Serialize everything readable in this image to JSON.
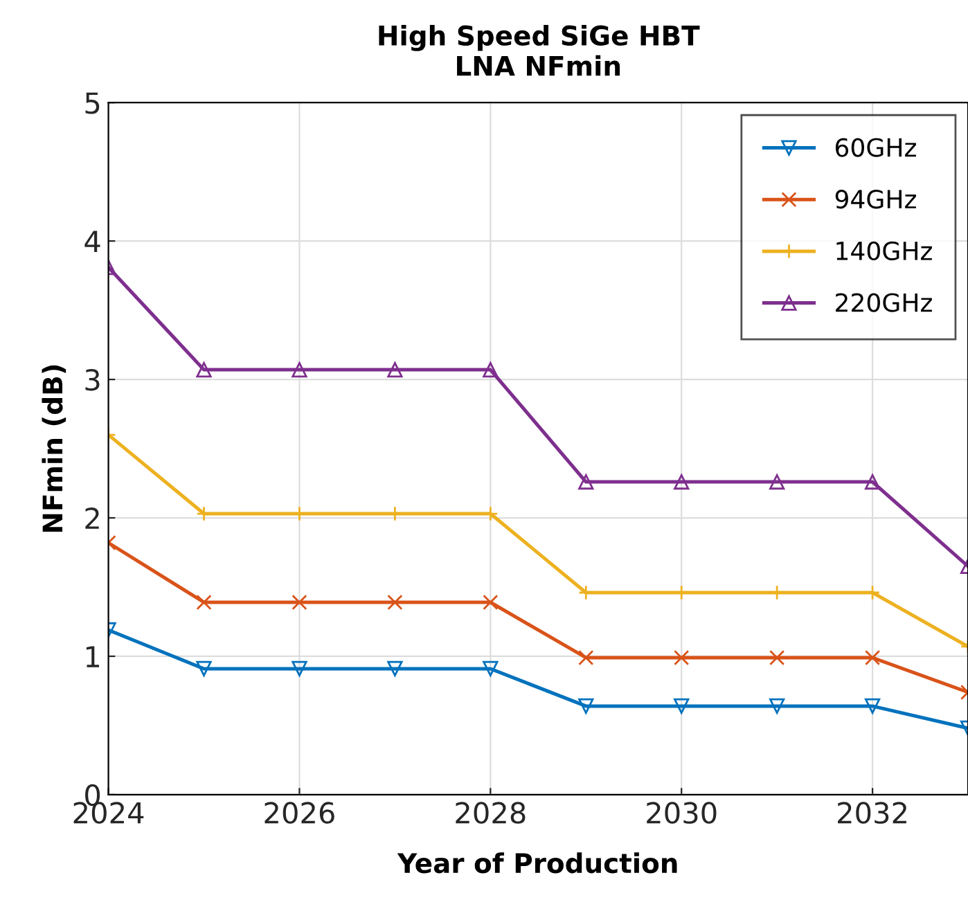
{
  "chart_data": {
    "type": "line",
    "title": "High Speed SiGe HBT\nLNA NFmin",
    "xlabel": "Year of Production",
    "ylabel": "NFmin (dB)",
    "x": [
      2024,
      2025,
      2026,
      2027,
      2028,
      2029,
      2030,
      2031,
      2032,
      2033
    ],
    "series": [
      {
        "name": "60GHz",
        "color": "#0072bd",
        "marker": "triangle_down",
        "values": [
          1.19,
          0.91,
          0.91,
          0.91,
          0.91,
          0.64,
          0.64,
          0.64,
          0.64,
          0.48
        ]
      },
      {
        "name": "94GHz",
        "color": "#d95319",
        "marker": "cross",
        "values": [
          1.82,
          1.39,
          1.39,
          1.39,
          1.39,
          0.99,
          0.99,
          0.99,
          0.99,
          0.74
        ]
      },
      {
        "name": "140GHz",
        "color": "#edb120",
        "marker": "plus",
        "values": [
          2.6,
          2.03,
          2.03,
          2.03,
          2.03,
          1.46,
          1.46,
          1.46,
          1.46,
          1.07
        ]
      },
      {
        "name": "220GHz",
        "color": "#7e2f8e",
        "marker": "triangle",
        "values": [
          3.81,
          3.07,
          3.07,
          3.07,
          3.07,
          2.26,
          2.26,
          2.26,
          2.26,
          1.65
        ]
      }
    ],
    "xlim": [
      2024,
      2033
    ],
    "xticks": [
      2024,
      2026,
      2028,
      2030,
      2032
    ],
    "ylim": [
      0,
      5
    ],
    "yticks": [
      0,
      1,
      2,
      3,
      4,
      5
    ],
    "grid": true,
    "legend": "top right",
    "line_style": "solid"
  }
}
